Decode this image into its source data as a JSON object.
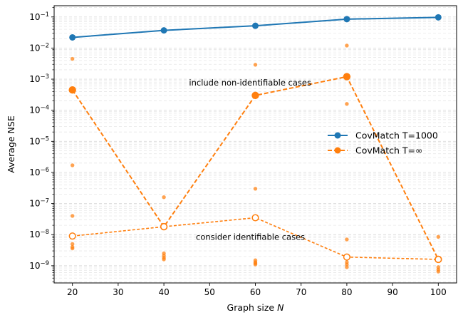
{
  "chart_data": {
    "type": "line",
    "xlabel": "Graph size",
    "xlabel_var": "N",
    "ylabel": "Average NSE",
    "yscale": "log",
    "xlim": [
      16,
      104
    ],
    "ylim": [
      2.8e-10,
      0.23
    ],
    "grid": true,
    "legend_position": "center-right",
    "x_ticks": [
      20,
      30,
      40,
      50,
      60,
      70,
      80,
      90,
      100
    ],
    "y_ticks": [
      {
        "value": 1e-09,
        "base": "10",
        "exp": "−9"
      },
      {
        "value": 1e-08,
        "base": "10",
        "exp": "−8"
      },
      {
        "value": 1e-07,
        "base": "10",
        "exp": "−7"
      },
      {
        "value": 1e-06,
        "base": "10",
        "exp": "−6"
      },
      {
        "value": 1e-05,
        "base": "10",
        "exp": "−5"
      },
      {
        "value": 0.0001,
        "base": "10",
        "exp": "−4"
      },
      {
        "value": 0.001,
        "base": "10",
        "exp": "−3"
      },
      {
        "value": 0.01,
        "base": "10",
        "exp": "−2"
      },
      {
        "value": 0.1,
        "base": "10",
        "exp": "−1"
      }
    ],
    "series": [
      {
        "name": "CovMatch T=1000",
        "color": "#1f77b4",
        "style": "solid",
        "x": [
          20,
          40,
          60,
          80,
          100
        ],
        "y": [
          0.022,
          0.037,
          0.052,
          0.085,
          0.097
        ]
      },
      {
        "name": "CovMatch T=∞",
        "color": "#ff7f0e",
        "style": "dashed",
        "x": [
          20,
          40,
          60,
          80,
          100
        ],
        "y": [
          0.00045,
          1.8e-08,
          0.0003,
          0.0012,
          1.6e-09
        ]
      },
      {
        "name": "identifiable cases (T=∞)",
        "color": "#ff7f0e",
        "style": "dotted-hollow",
        "in_legend": false,
        "x": [
          20,
          40,
          60,
          80,
          100
        ],
        "y": [
          9e-09,
          1.8e-08,
          3.5e-08,
          1.9e-09,
          1.6e-09
        ]
      }
    ],
    "scatter_points": {
      "color": "#ff7f0e",
      "points": [
        [
          20,
          0.0045
        ],
        [
          20,
          1.7e-06
        ],
        [
          20,
          4e-08
        ],
        [
          20,
          5e-09
        ],
        [
          20,
          4e-09
        ],
        [
          20,
          3.6e-09
        ],
        [
          40,
          1.6e-07
        ],
        [
          40,
          2.5e-09
        ],
        [
          40,
          2.1e-09
        ],
        [
          40,
          1.8e-09
        ],
        [
          40,
          1.6e-09
        ],
        [
          60,
          0.0029
        ],
        [
          60,
          3e-07
        ],
        [
          60,
          1.5e-09
        ],
        [
          60,
          1.3e-09
        ],
        [
          60,
          1.2e-09
        ],
        [
          60,
          1.1e-09
        ],
        [
          80,
          0.012
        ],
        [
          80,
          0.00016
        ],
        [
          80,
          7e-09
        ],
        [
          80,
          1.3e-09
        ],
        [
          80,
          1.1e-09
        ],
        [
          80,
          9e-10
        ],
        [
          100,
          8.5e-09
        ],
        [
          100,
          9e-10
        ],
        [
          100,
          7.5e-10
        ],
        [
          100,
          6.5e-10
        ]
      ]
    },
    "annotations": [
      {
        "text": "include non-identifiable cases",
        "x": 45.5,
        "y": 0.00078
      },
      {
        "text": "consider identifiable cases",
        "x": 47,
        "y": 8.5e-09
      }
    ]
  }
}
